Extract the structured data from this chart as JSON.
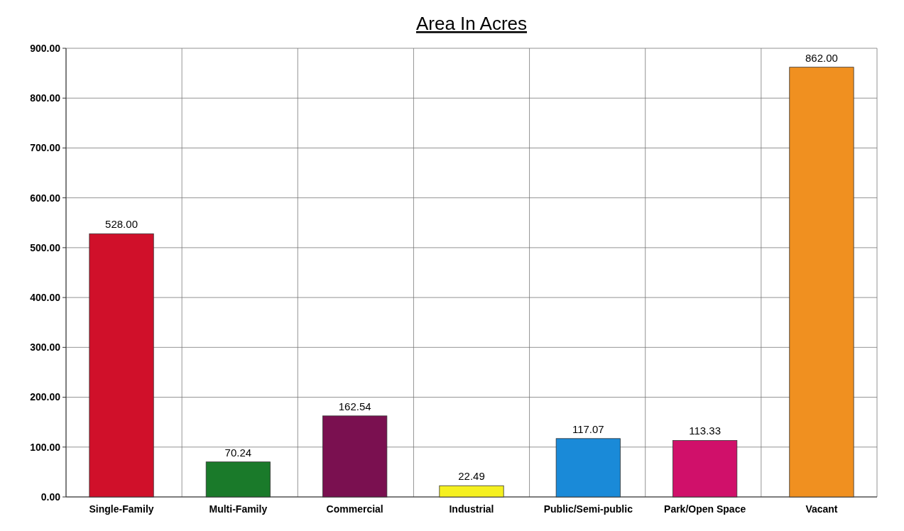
{
  "chart_data": {
    "type": "bar",
    "title": "Area In Acres",
    "categories": [
      "Single-Family",
      "Multi-Family",
      "Commercial",
      "Industrial",
      "Public/Semi-public",
      "Park/Open Space",
      "Vacant"
    ],
    "values": [
      528,
      70.24,
      162.54,
      22.49,
      117.07,
      113.33,
      862
    ],
    "value_labels": [
      "528.00",
      "70.24",
      "162.54",
      "22.49",
      "117.07",
      "113.33",
      "862.00"
    ],
    "colors": [
      "#d0102a",
      "#1a7a2a",
      "#7a1050",
      "#f5f020",
      "#1a8ad8",
      "#d0106a",
      "#f09020"
    ],
    "ylim": [
      0,
      900
    ],
    "yticks": [
      {
        "value": 0,
        "label": "0.00"
      },
      {
        "value": 100,
        "label": "100.00"
      },
      {
        "value": 200,
        "label": "200.00"
      },
      {
        "value": 300,
        "label": "300.00"
      },
      {
        "value": 400,
        "label": "400.00"
      },
      {
        "value": 500,
        "label": "500.00"
      },
      {
        "value": 600,
        "label": "600.00"
      },
      {
        "value": 700,
        "label": "700.00"
      },
      {
        "value": 800,
        "label": "800.00"
      },
      {
        "value": 900,
        "label": "900.00"
      }
    ],
    "grid": true
  }
}
